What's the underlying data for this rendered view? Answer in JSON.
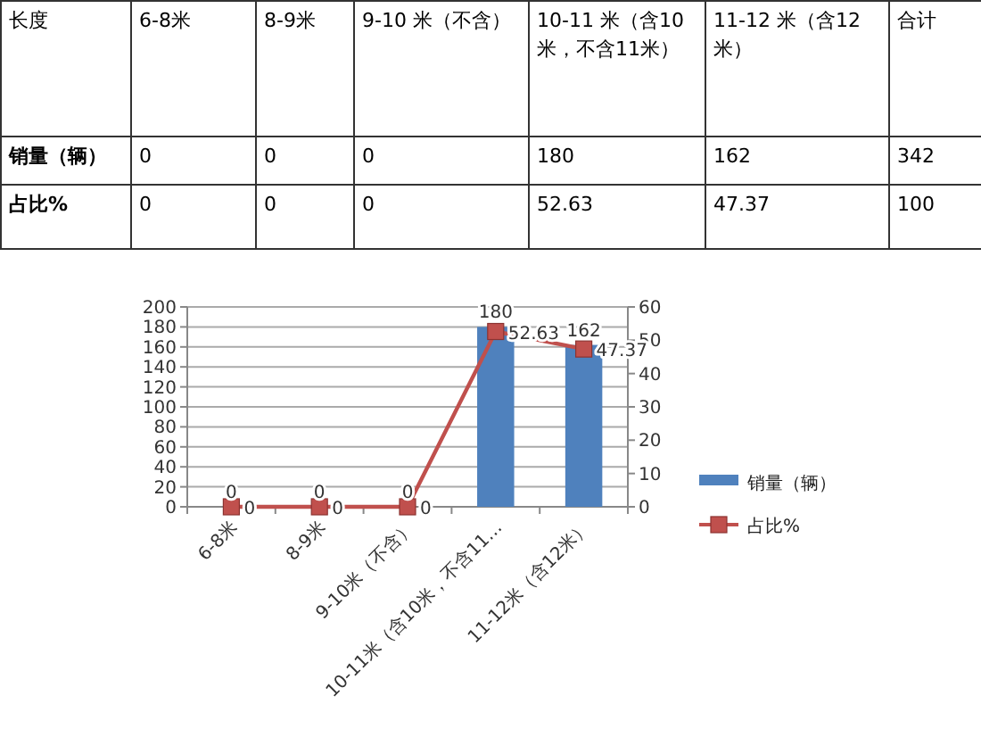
{
  "chart_data": [
    {
      "type": "other",
      "annotations": [
        "长度",
        "6-8米",
        "8-9米",
        "9-10 米（不含）",
        "10-11 米（含10米，不含11米）",
        "11-12 米（含12米）",
        "合计",
        "销量（辆）",
        "0",
        "0",
        "0",
        "180",
        "162",
        "342",
        "占比%",
        "0",
        "0",
        "0",
        "52.63",
        "47.37",
        "100"
      ]
    },
    {
      "type": "bar",
      "categories": [
        "6-8米",
        "8-9米",
        "9-10米（不含）",
        "10-11米（含10米，不含11…",
        "11-12米（含12米）"
      ],
      "series": [
        {
          "name": "销量（辆）",
          "type": "bar",
          "color": "#4f81bd",
          "values": [
            0,
            0,
            0,
            180,
            162
          ]
        },
        {
          "name": "占比%",
          "type": "line",
          "axis": "y2",
          "color": "#c0504d",
          "marker": "square",
          "values": [
            0,
            0,
            0,
            52.63,
            47.37
          ]
        }
      ],
      "ylim": [
        0,
        200
      ],
      "yticks": [
        0,
        20,
        40,
        60,
        80,
        100,
        120,
        140,
        160,
        180,
        200
      ],
      "y2lim": [
        0,
        60
      ],
      "y2ticks": [
        0,
        10,
        20,
        30,
        40,
        50,
        60
      ],
      "grid": "y",
      "legend": "right",
      "data_labels": true
    }
  ]
}
